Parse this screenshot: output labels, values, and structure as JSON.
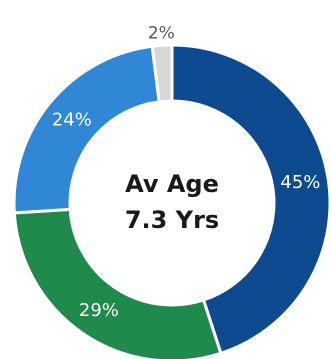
{
  "chart_data": {
    "type": "pie",
    "variant": "donut",
    "start_at": "top",
    "direction": "clockwise",
    "center_label": {
      "line1": "Av Age",
      "line2": "7.3 Yrs"
    },
    "slices": [
      {
        "label": "45%",
        "value": 45,
        "color": "#0d4a8f",
        "label_placement": "inside"
      },
      {
        "label": "29%",
        "value": 29,
        "color": "#1f8a4c",
        "label_placement": "inside"
      },
      {
        "label": "24%",
        "value": 24,
        "color": "#2f87d6",
        "label_placement": "inside"
      },
      {
        "label": "2%",
        "value": 2,
        "color": "#d8d8d8",
        "label_placement": "outside"
      }
    ],
    "legend": "none"
  }
}
